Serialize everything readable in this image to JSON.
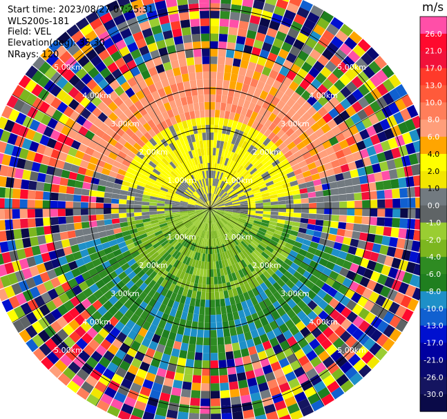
{
  "header": {
    "start_time": "Start time: 2023/08/27 07:25:31",
    "site": "WLS200s-181",
    "field": "Field: VEL",
    "elevation": "Elevation(deg): 35.30",
    "nrays": "NRays: 120"
  },
  "chart_data": {
    "type": "heatmap",
    "projection": "polar PPI (azimuth vs range)",
    "field": "VEL",
    "units": "m/s",
    "n_rays": 120,
    "range_rings_km": [
      1.0,
      2.0,
      3.0,
      4.0,
      5.0
    ],
    "ring_labels": [
      "1.00km",
      "2.00km",
      "3.00km",
      "4.00km",
      "5.00km"
    ],
    "max_range_km": 5.7,
    "colorbar": {
      "title": "m/s",
      "ticks": [
        "26.0",
        "21.0",
        "17.0",
        "13.0",
        "10.0",
        "8.0",
        "6.0",
        "4.0",
        "2.0",
        "1.0",
        "0.0",
        "-1.0",
        "-2.0",
        "-4.0",
        "-6.0",
        "-8.0",
        "-10.0",
        "-13.0",
        "-17.0",
        "-21.0",
        "-26.0",
        "-30.0"
      ],
      "colors": [
        "#ff4fa8",
        "#ff0a2e",
        "#f2113a",
        "#ff3a2a",
        "#ff5a3a",
        "#ff7e5a",
        "#ff9e7a",
        "#ffa500",
        "#ffff00",
        "#f2e600",
        "#727a80",
        "#5f6466",
        "#9acd32",
        "#7cb61f",
        "#2e8b22",
        "#1f7f1f",
        "#1e90c8",
        "#1060d0",
        "#0010d0",
        "#0000a0",
        "#0a0a70",
        "#151560",
        "#0a0a48"
      ]
    },
    "pattern_summary": {
      "near_range_north": "positive 1–4 m/s (yellow/orange)",
      "near_range_south": "negative -1 to -8 m/s (green/blue)",
      "far_range": "noise, full colour scale"
    }
  }
}
